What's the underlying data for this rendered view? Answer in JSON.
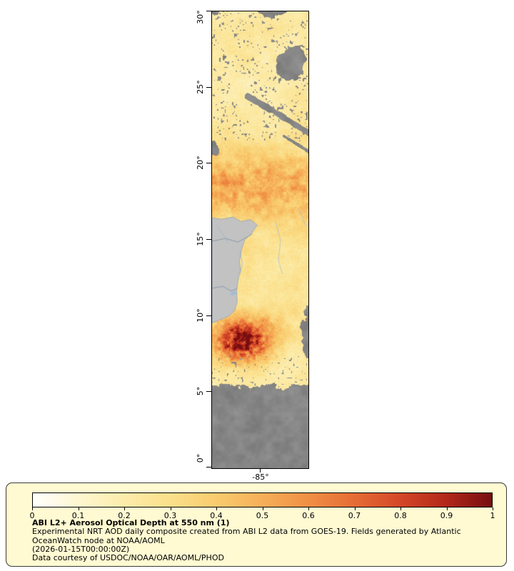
{
  "figure": {
    "background": "#ffffff"
  },
  "map": {
    "land_color": "#c2c2c2",
    "coast_color": "#8fa3b8",
    "border_color": "#7d8fa8",
    "river_color": "#93b4cf",
    "water_color": "#9fbcd8",
    "cloud_color": "#7f7f7f"
  },
  "legend": {
    "background": "#fffad2",
    "title": "ABI L2+ Aerosol Optical Depth at 550 nm (1)",
    "description": "Experimental NRT AOD daily composite created from ABI L2 data from GOES-19. Fields generated by Atlantic OceanWatch node at NOAA/AOML",
    "timestamp": "(2026-01-15T00:00:00Z)",
    "credit": "Data courtesy of USDOC/NOAA/OAR/AOML/PHOD"
  },
  "chart_data": {
    "type": "heatmap",
    "title": "ABI L2+ Aerosol Optical Depth at 550 nm (1)",
    "variable": "Aerosol Optical Depth at 550 nm",
    "y_axis": {
      "kind": "latitude",
      "ticks": [
        "30°",
        "25°",
        "20°",
        "15°",
        "10°",
        "5°",
        "0°"
      ],
      "range_deg": [
        0,
        30
      ]
    },
    "x_axis": {
      "kind": "longitude",
      "ticks": [
        "-85°"
      ]
    },
    "colorbar": {
      "min": 0,
      "max": 1,
      "tick_labels": [
        "0",
        "0.1",
        "0.2",
        "0.3",
        "0.4",
        "0.5",
        "0.6",
        "0.7",
        "0.8",
        "0.9",
        "1"
      ],
      "stops": [
        "#ffffff",
        "#fef6d0",
        "#fcecaa",
        "#fbdf8a",
        "#f9cb6e",
        "#f6af57",
        "#f08f45",
        "#e66c35",
        "#d44727",
        "#b2271a",
        "#760e10"
      ]
    },
    "visual_features": [
      "pale-yellow low AOD (~0.1-0.25) over ocean from 22N to 30N with scattered gray cloud gaps",
      "large gray cloud mass near 27-29N on the right and gray no-data band along Cuba ~21-23N",
      "elevated speckled AOD band (~0.3-0.6) across ~16.5-20.5N",
      "gray Central America land mass ~9.5-16.5N on the west with blue borders, rivers and Lake Nicaragua",
      "intense dark-red AOD plume (~0.6-1.0) near 7-9.5N",
      "extensive dark-gray cloud/no-data coverage south of ~6N with yellow gaps"
    ]
  }
}
